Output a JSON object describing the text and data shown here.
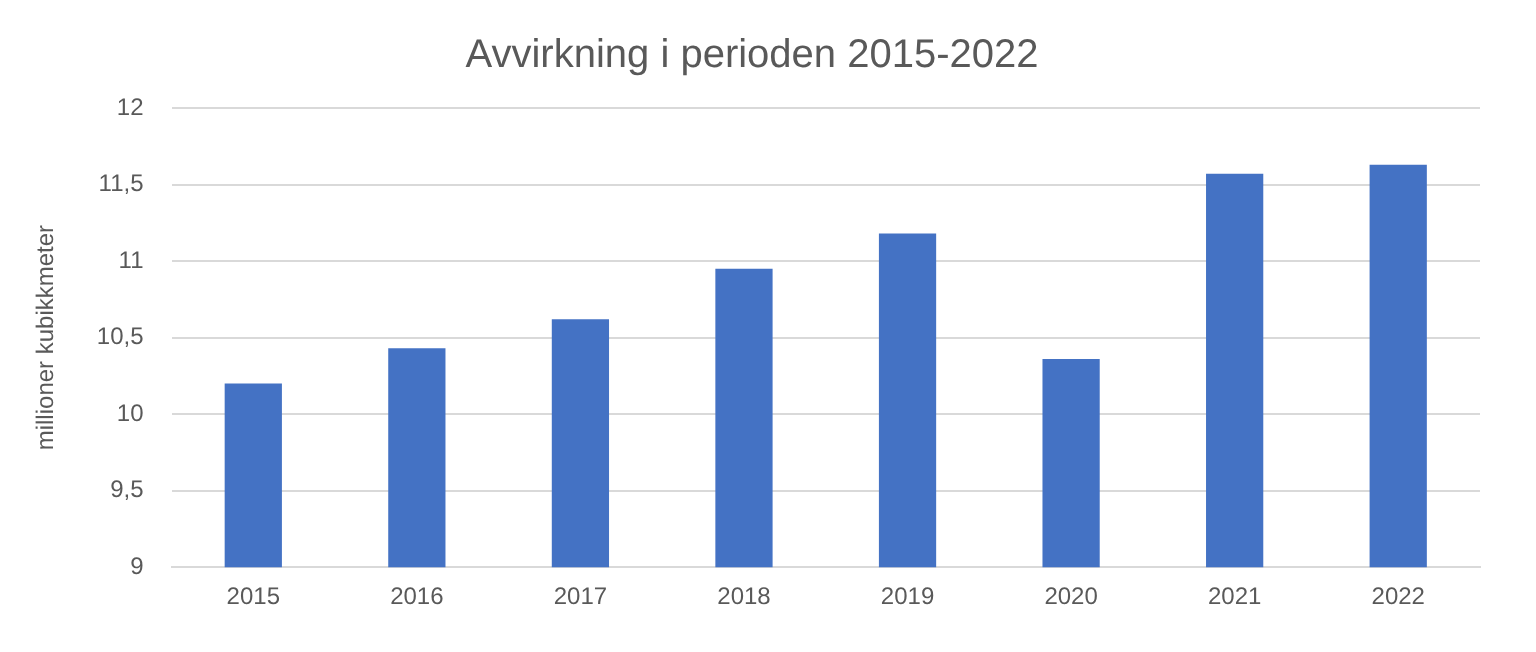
{
  "chart_data": {
    "type": "bar",
    "title": "Avvirkning i perioden 2015-2022",
    "ylabel": "millioner kubikkmeter",
    "categories": [
      "2015",
      "2016",
      "2017",
      "2018",
      "2019",
      "2020",
      "2021",
      "2022"
    ],
    "values": [
      10.2,
      10.43,
      10.62,
      10.95,
      11.18,
      10.36,
      11.57,
      11.63
    ],
    "color": "#4472c4",
    "ylim": [
      9,
      12
    ],
    "yticks": [
      {
        "value": 9,
        "label": "9"
      },
      {
        "value": 9.5,
        "label": "9,5"
      },
      {
        "value": 10,
        "label": "10"
      },
      {
        "value": 10.5,
        "label": "10,5"
      },
      {
        "value": 11,
        "label": "11"
      },
      {
        "value": 11.5,
        "label": "11,5"
      },
      {
        "value": 12,
        "label": "12"
      }
    ],
    "grid": "y",
    "legend": false
  }
}
